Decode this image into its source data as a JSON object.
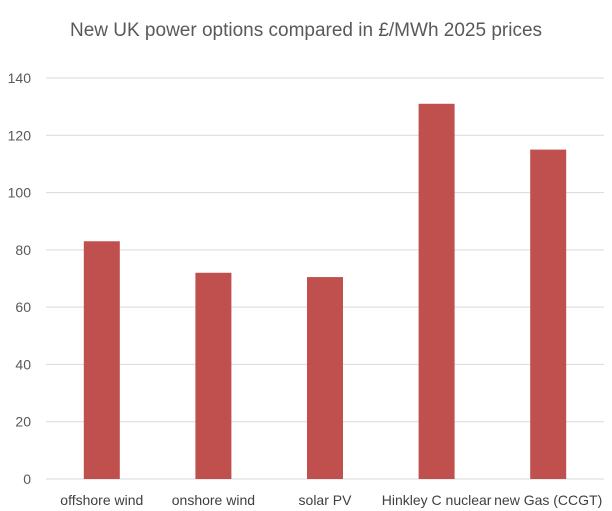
{
  "chart_data": {
    "type": "bar",
    "title": "New UK power options compared in £/MWh 2025 prices",
    "categories": [
      "offshore wind",
      "onshore wind",
      "solar PV",
      "Hinkley C nuclear",
      "new Gas (CCGT)"
    ],
    "series": [
      {
        "values": [
          83,
          72,
          70.5,
          131,
          115
        ]
      }
    ],
    "xlabel": "",
    "ylabel": "",
    "ylim": [
      0,
      140
    ],
    "yticks": [
      0,
      20,
      40,
      60,
      80,
      100,
      120,
      140
    ],
    "grid": "horizontal",
    "legend": "none",
    "colors": {
      "bar": "#c0504d",
      "grid": "#d9d9d9",
      "axis": "#d9d9d9"
    }
  }
}
